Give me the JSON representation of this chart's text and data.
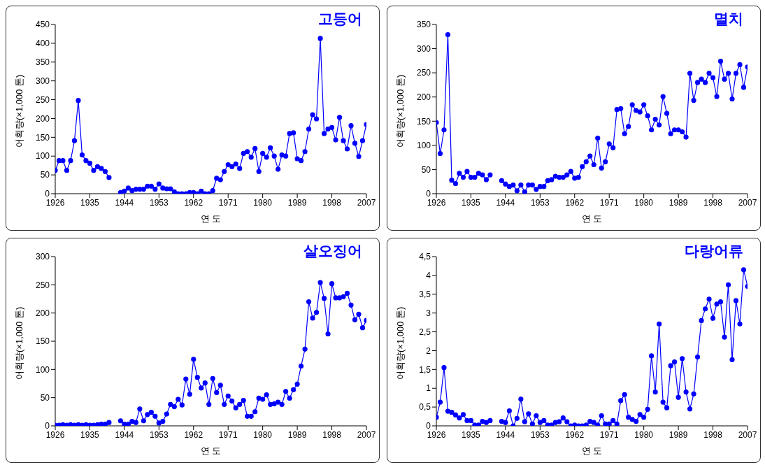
{
  "chart_data": [
    {
      "type": "line",
      "title": "고등어",
      "xlabel": "연 도",
      "ylabel": "어획량(×1,000 톤)",
      "legend": false,
      "grid": false,
      "marker": "circle",
      "line_style": "solid",
      "x": [
        1926,
        1927,
        1928,
        1929,
        1930,
        1931,
        1932,
        1933,
        1934,
        1935,
        1936,
        1937,
        1938,
        1939,
        1940,
        1941,
        1942,
        1943,
        1944,
        1945,
        1946,
        1947,
        1948,
        1949,
        1950,
        1951,
        1952,
        1953,
        1954,
        1955,
        1956,
        1957,
        1958,
        1959,
        1960,
        1961,
        1962,
        1963,
        1964,
        1965,
        1966,
        1967,
        1968,
        1969,
        1970,
        1971,
        1972,
        1973,
        1974,
        1975,
        1976,
        1977,
        1978,
        1979,
        1980,
        1981,
        1982,
        1983,
        1984,
        1985,
        1986,
        1987,
        1988,
        1989,
        1990,
        1991,
        1992,
        1993,
        1994,
        1995,
        1996,
        1997,
        1998,
        1999,
        2000,
        2001,
        2002,
        2003,
        2004,
        2005,
        2006,
        2007
      ],
      "xlim": [
        1926,
        2007
      ],
      "xticks": [
        1926,
        1935,
        1944,
        1953,
        1962,
        1971,
        1980,
        1989,
        1998,
        2007
      ],
      "ylim": [
        0,
        450
      ],
      "yticks": [
        0,
        50,
        100,
        150,
        200,
        250,
        300,
        350,
        400,
        450
      ],
      "series": [
        {
          "color": "#0000ff",
          "values": [
            62,
            88,
            88,
            62,
            88,
            141,
            248,
            103,
            88,
            81,
            62,
            72,
            67,
            59,
            43,
            null,
            null,
            3,
            7,
            15,
            8,
            12,
            12,
            12,
            20,
            20,
            12,
            26,
            15,
            13,
            13,
            5,
            0,
            0,
            0,
            3,
            3,
            0,
            7,
            0,
            0,
            8,
            41,
            37,
            59,
            77,
            72,
            79,
            67,
            107,
            112,
            97,
            120,
            59,
            107,
            97,
            122,
            100,
            65,
            103,
            100,
            160,
            162,
            93,
            88,
            112,
            172,
            210,
            199,
            413,
            160,
            172,
            176,
            143,
            203,
            141,
            119,
            181,
            134,
            99,
            141,
            184
          ]
        }
      ]
    },
    {
      "type": "line",
      "title": "멸치",
      "xlabel": "연 도",
      "ylabel": "어획량(×1,000 톤)",
      "legend": false,
      "grid": false,
      "marker": "circle",
      "line_style": "solid",
      "x": [
        1926,
        1927,
        1928,
        1929,
        1930,
        1931,
        1932,
        1933,
        1934,
        1935,
        1936,
        1937,
        1938,
        1939,
        1940,
        1941,
        1942,
        1943,
        1944,
        1945,
        1946,
        1947,
        1948,
        1949,
        1950,
        1951,
        1952,
        1953,
        1954,
        1955,
        1956,
        1957,
        1958,
        1959,
        1960,
        1961,
        1962,
        1963,
        1964,
        1965,
        1966,
        1967,
        1968,
        1969,
        1970,
        1971,
        1972,
        1973,
        1974,
        1975,
        1976,
        1977,
        1978,
        1979,
        1980,
        1981,
        1982,
        1983,
        1984,
        1985,
        1986,
        1987,
        1988,
        1989,
        1990,
        1991,
        1992,
        1993,
        1994,
        1995,
        1996,
        1997,
        1998,
        1999,
        2000,
        2001,
        2002,
        2003,
        2004,
        2005,
        2006,
        2007
      ],
      "xlim": [
        1926,
        2007
      ],
      "xticks": [
        1926,
        1935,
        1944,
        1953,
        1962,
        1971,
        1980,
        1989,
        1998,
        2007
      ],
      "ylim": [
        0,
        350
      ],
      "yticks": [
        0,
        50,
        100,
        150,
        200,
        250,
        300,
        350
      ],
      "series": [
        {
          "color": "#0000ff",
          "values": [
            147,
            83,
            132,
            329,
            28,
            21,
            42,
            34,
            46,
            34,
            34,
            42,
            39,
            29,
            39,
            null,
            null,
            27,
            20,
            15,
            18,
            6,
            18,
            4,
            18,
            18,
            9,
            15,
            15,
            27,
            29,
            36,
            34,
            34,
            39,
            46,
            32,
            34,
            56,
            66,
            78,
            60,
            115,
            53,
            66,
            103,
            95,
            174,
            176,
            124,
            139,
            184,
            172,
            169,
            184,
            161,
            132,
            154,
            142,
            201,
            166,
            124,
            132,
            132,
            128,
            117,
            249,
            193,
            230,
            237,
            230,
            249,
            240,
            201,
            274,
            237,
            249,
            196,
            249,
            267,
            220,
            262
          ]
        }
      ]
    },
    {
      "type": "line",
      "title": "살오징어",
      "xlabel": "연 도",
      "ylabel": "어획량(×1,000 톤)",
      "legend": false,
      "grid": false,
      "marker": "circle",
      "line_style": "solid",
      "x": [
        1926,
        1927,
        1928,
        1929,
        1930,
        1931,
        1932,
        1933,
        1934,
        1935,
        1936,
        1937,
        1938,
        1939,
        1940,
        1941,
        1942,
        1943,
        1944,
        1945,
        1946,
        1947,
        1948,
        1949,
        1950,
        1951,
        1952,
        1953,
        1954,
        1955,
        1956,
        1957,
        1958,
        1959,
        1960,
        1961,
        1962,
        1963,
        1964,
        1965,
        1966,
        1967,
        1968,
        1969,
        1970,
        1971,
        1972,
        1973,
        1974,
        1975,
        1976,
        1977,
        1978,
        1979,
        1980,
        1981,
        1982,
        1983,
        1984,
        1985,
        1986,
        1987,
        1988,
        1989,
        1990,
        1991,
        1992,
        1993,
        1994,
        1995,
        1996,
        1997,
        1998,
        1999,
        2000,
        2001,
        2002,
        2003,
        2004,
        2005,
        2006,
        2007
      ],
      "xlim": [
        1926,
        2007
      ],
      "xticks": [
        1926,
        1935,
        1944,
        1953,
        1962,
        1971,
        1980,
        1989,
        1998,
        2007
      ],
      "ylim": [
        0,
        300
      ],
      "yticks": [
        0,
        50,
        100,
        150,
        200,
        250,
        300
      ],
      "series": [
        {
          "color": "#0000ff",
          "values": [
            1,
            1,
            2,
            1,
            2,
            1,
            2,
            1,
            2,
            1,
            1,
            2,
            3,
            3,
            6,
            null,
            null,
            9,
            3,
            3,
            8,
            6,
            30,
            9,
            20,
            24,
            17,
            5,
            8,
            21,
            38,
            34,
            47,
            37,
            83,
            56,
            118,
            86,
            67,
            76,
            38,
            84,
            59,
            72,
            38,
            53,
            44,
            32,
            38,
            45,
            17,
            17,
            25,
            49,
            47,
            55,
            38,
            39,
            42,
            38,
            61,
            49,
            64,
            74,
            106,
            136,
            220,
            191,
            201,
            254,
            226,
            163,
            252,
            227,
            227,
            229,
            235,
            214,
            188,
            198,
            174,
            187
          ]
        }
      ]
    },
    {
      "type": "line",
      "title": "다랑어류",
      "xlabel": "연 도",
      "ylabel": "어획량(×1,000 톤)",
      "legend": false,
      "grid": false,
      "marker": "circle",
      "line_style": "solid",
      "x": [
        1926,
        1927,
        1928,
        1929,
        1930,
        1931,
        1932,
        1933,
        1934,
        1935,
        1936,
        1937,
        1938,
        1939,
        1940,
        1941,
        1942,
        1943,
        1944,
        1945,
        1946,
        1947,
        1948,
        1949,
        1950,
        1951,
        1952,
        1953,
        1954,
        1955,
        1956,
        1957,
        1958,
        1959,
        1960,
        1961,
        1962,
        1963,
        1964,
        1965,
        1966,
        1967,
        1968,
        1969,
        1970,
        1971,
        1972,
        1973,
        1974,
        1975,
        1976,
        1977,
        1978,
        1979,
        1980,
        1981,
        1982,
        1983,
        1984,
        1985,
        1986,
        1987,
        1988,
        1989,
        1990,
        1991,
        1992,
        1993,
        1994,
        1995,
        1996,
        1997,
        1998,
        1999,
        2000,
        2001,
        2002,
        2003,
        2004,
        2005,
        2006,
        2007
      ],
      "xlim": [
        1926,
        2007
      ],
      "xticks": [
        1926,
        1935,
        1944,
        1953,
        1962,
        1971,
        1980,
        1989,
        1998,
        2007
      ],
      "ylim": [
        0,
        4.5
      ],
      "yticks": [
        0,
        {
          "value": 0.5,
          "label": "0,5"
        },
        1,
        {
          "value": 1.5,
          "label": "1,5"
        },
        2,
        {
          "value": 2.5,
          "label": "2,5"
        },
        3,
        {
          "value": 3.5,
          "label": "3,5"
        },
        4,
        {
          "value": 4.5,
          "label": "4,5"
        }
      ],
      "series": [
        {
          "color": "#0000ff",
          "values": [
            0.23,
            0.63,
            1.55,
            0.39,
            0.36,
            0.29,
            0.21,
            0.3,
            0.14,
            0.14,
            0.02,
            0.02,
            0.12,
            0.09,
            0.14,
            null,
            null,
            0.12,
            0.09,
            0.4,
            0,
            0.2,
            0.71,
            0.11,
            0.32,
            0.05,
            0.27,
            0.09,
            0.14,
            0.02,
            0.02,
            0.09,
            0.11,
            0.21,
            0.11,
            0,
            0.02,
            0,
            0,
            0.02,
            0.12,
            0.09,
            0.02,
            0.27,
            0.05,
            0.05,
            0.14,
            0.05,
            0.67,
            0.83,
            0.23,
            0.17,
            0.12,
            0.3,
            0.23,
            0.44,
            1.86,
            0.9,
            2.71,
            0.63,
            0.48,
            1.6,
            1.7,
            0.76,
            1.79,
            0.9,
            0.45,
            0.85,
            1.83,
            2.8,
            3.11,
            3.37,
            2.86,
            3.24,
            3.3,
            2.36,
            3.75,
            1.76,
            3.33,
            2.71,
            4.15,
            3.71
          ]
        }
      ]
    }
  ]
}
